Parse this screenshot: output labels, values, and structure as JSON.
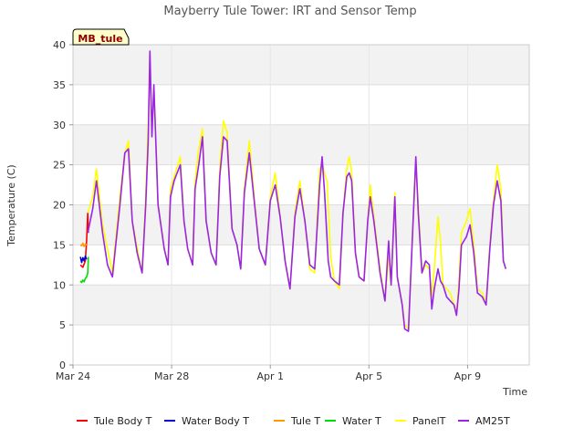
{
  "chart_data": {
    "type": "line",
    "title": "Mayberry Tule Tower: IRT and Sensor Temp",
    "xlabel": "Time",
    "ylabel": "Temperature (C)",
    "ylim": [
      0,
      40
    ],
    "xlim": [
      0,
      18.5
    ],
    "yticks": [
      0,
      5,
      10,
      15,
      20,
      25,
      30,
      35,
      40
    ],
    "xticks": [
      {
        "day": 0,
        "label": "Mar 24"
      },
      {
        "day": 4,
        "label": "Mar 28"
      },
      {
        "day": 8,
        "label": "Apr 1"
      },
      {
        "day": 12,
        "label": "Apr 5"
      },
      {
        "day": 16,
        "label": "Apr 9"
      }
    ],
    "badge": "MB_tule",
    "legend_position": "bottom",
    "series": [
      {
        "name": "Tule Body T",
        "color": "#ff0000",
        "points": [
          [
            0.3,
            12.5
          ],
          [
            0.4,
            12.2
          ],
          [
            0.5,
            13.0
          ],
          [
            0.55,
            15.5
          ],
          [
            0.6,
            19.0
          ],
          [
            0.62,
            16.5
          ]
        ]
      },
      {
        "name": "Water Body T",
        "color": "#0000cc",
        "points": [
          [
            0.3,
            13.5
          ],
          [
            0.35,
            12.8
          ],
          [
            0.4,
            13.4
          ],
          [
            0.45,
            13.0
          ],
          [
            0.5,
            13.6
          ],
          [
            0.55,
            13.2
          ]
        ]
      },
      {
        "name": "Tule T",
        "color": "#ff9900",
        "points": [
          [
            0.3,
            15.0
          ],
          [
            0.35,
            14.9
          ],
          [
            0.4,
            15.2
          ],
          [
            0.45,
            14.8
          ],
          [
            0.5,
            15.1
          ],
          [
            0.55,
            15.0
          ]
        ]
      },
      {
        "name": "Water T",
        "color": "#00dd00",
        "points": [
          [
            0.3,
            10.5
          ],
          [
            0.35,
            10.3
          ],
          [
            0.4,
            10.6
          ],
          [
            0.45,
            10.4
          ],
          [
            0.5,
            10.8
          ],
          [
            0.55,
            11.0
          ],
          [
            0.6,
            11.5
          ],
          [
            0.62,
            13.5
          ]
        ]
      },
      {
        "name": "PanelT",
        "color": "#ffff00",
        "points": [
          [
            0.6,
            19.0
          ],
          [
            0.8,
            21.0
          ],
          [
            0.95,
            24.5
          ],
          [
            1.2,
            17.5
          ],
          [
            1.6,
            11.5
          ],
          [
            1.9,
            21.0
          ],
          [
            2.1,
            26.5
          ],
          [
            2.25,
            28.0
          ],
          [
            2.4,
            18.0
          ],
          [
            2.7,
            13.0
          ],
          [
            2.8,
            11.5
          ],
          [
            2.95,
            21.0
          ],
          [
            3.05,
            30.0
          ],
          [
            3.12,
            38.5
          ],
          [
            3.2,
            29.0
          ],
          [
            3.28,
            34.5
          ],
          [
            3.45,
            20.0
          ],
          [
            3.7,
            14.5
          ],
          [
            3.85,
            12.5
          ],
          [
            3.95,
            22.0
          ],
          [
            4.1,
            23.5
          ],
          [
            4.35,
            26.0
          ],
          [
            4.5,
            18.0
          ],
          [
            4.65,
            14.5
          ],
          [
            4.85,
            12.5
          ],
          [
            4.95,
            23.0
          ],
          [
            5.1,
            27.0
          ],
          [
            5.25,
            29.5
          ],
          [
            5.4,
            18.0
          ],
          [
            5.6,
            14.0
          ],
          [
            5.8,
            12.5
          ],
          [
            5.95,
            24.5
          ],
          [
            6.1,
            30.5
          ],
          [
            6.25,
            29.0
          ],
          [
            6.45,
            17.0
          ],
          [
            6.65,
            15.0
          ],
          [
            6.8,
            12.0
          ],
          [
            6.95,
            22.0
          ],
          [
            7.15,
            28.0
          ],
          [
            7.35,
            21.0
          ],
          [
            7.55,
            14.5
          ],
          [
            7.8,
            12.5
          ],
          [
            8.0,
            21.0
          ],
          [
            8.2,
            24.0
          ],
          [
            8.4,
            18.5
          ],
          [
            8.6,
            13.0
          ],
          [
            8.8,
            9.5
          ],
          [
            9.0,
            19.0
          ],
          [
            9.2,
            23.0
          ],
          [
            9.4,
            18.0
          ],
          [
            9.6,
            12.0
          ],
          [
            9.8,
            11.5
          ],
          [
            10.0,
            24.5
          ],
          [
            10.1,
            25.0
          ],
          [
            10.3,
            23.0
          ],
          [
            10.45,
            13.5
          ],
          [
            10.6,
            10.5
          ],
          [
            10.8,
            9.5
          ],
          [
            10.95,
            19.0
          ],
          [
            11.1,
            24.5
          ],
          [
            11.2,
            26.0
          ],
          [
            11.3,
            24.0
          ],
          [
            11.45,
            14.0
          ],
          [
            11.6,
            11.0
          ],
          [
            11.8,
            10.5
          ],
          [
            11.95,
            18.0
          ],
          [
            12.05,
            22.5
          ],
          [
            12.2,
            18.5
          ],
          [
            12.45,
            12.0
          ],
          [
            12.65,
            8.0
          ],
          [
            12.8,
            13.5
          ],
          [
            12.9,
            10.0
          ],
          [
            13.05,
            21.5
          ],
          [
            13.15,
            11.0
          ],
          [
            13.35,
            7.5
          ],
          [
            13.45,
            5.0
          ],
          [
            13.6,
            4.5
          ],
          [
            13.75,
            15.0
          ],
          [
            13.9,
            25.0
          ],
          [
            14.0,
            20.0
          ],
          [
            14.15,
            11.5
          ],
          [
            14.3,
            12.5
          ],
          [
            14.45,
            12.0
          ],
          [
            14.55,
            8.5
          ],
          [
            14.65,
            12.0
          ],
          [
            14.8,
            18.5
          ],
          [
            14.9,
            15.5
          ],
          [
            15.0,
            10.0
          ],
          [
            15.15,
            9.5
          ],
          [
            15.3,
            9.0
          ],
          [
            15.45,
            7.5
          ],
          [
            15.55,
            6.5
          ],
          [
            15.65,
            10.5
          ],
          [
            15.75,
            16.5
          ],
          [
            15.95,
            18.0
          ],
          [
            16.1,
            19.5
          ],
          [
            16.25,
            15.0
          ],
          [
            16.4,
            9.5
          ],
          [
            16.6,
            9.0
          ],
          [
            16.75,
            7.5
          ],
          [
            16.9,
            15.0
          ],
          [
            17.05,
            20.5
          ],
          [
            17.2,
            25.0
          ],
          [
            17.35,
            22.0
          ],
          [
            17.45,
            13.0
          ],
          [
            17.55,
            12.0
          ]
        ]
      },
      {
        "name": "AM25T",
        "color": "#9a24e8",
        "points": [
          [
            0.6,
            16.5
          ],
          [
            0.8,
            19.5
          ],
          [
            0.95,
            23.0
          ],
          [
            1.2,
            16.5
          ],
          [
            1.4,
            12.5
          ],
          [
            1.6,
            11.0
          ],
          [
            1.9,
            20.0
          ],
          [
            2.1,
            26.5
          ],
          [
            2.25,
            27.0
          ],
          [
            2.4,
            18.0
          ],
          [
            2.6,
            14.0
          ],
          [
            2.8,
            11.5
          ],
          [
            2.95,
            20.0
          ],
          [
            3.05,
            28.0
          ],
          [
            3.12,
            39.2
          ],
          [
            3.2,
            28.5
          ],
          [
            3.28,
            35.0
          ],
          [
            3.45,
            20.0
          ],
          [
            3.7,
            14.5
          ],
          [
            3.85,
            12.5
          ],
          [
            3.95,
            21.0
          ],
          [
            4.1,
            23.0
          ],
          [
            4.35,
            25.0
          ],
          [
            4.5,
            18.0
          ],
          [
            4.65,
            14.5
          ],
          [
            4.85,
            12.5
          ],
          [
            4.95,
            22.0
          ],
          [
            5.1,
            25.0
          ],
          [
            5.25,
            28.5
          ],
          [
            5.4,
            18.0
          ],
          [
            5.6,
            14.0
          ],
          [
            5.8,
            12.5
          ],
          [
            5.95,
            23.5
          ],
          [
            6.1,
            28.5
          ],
          [
            6.25,
            28.0
          ],
          [
            6.45,
            17.0
          ],
          [
            6.65,
            15.0
          ],
          [
            6.8,
            12.0
          ],
          [
            6.95,
            21.5
          ],
          [
            7.15,
            26.5
          ],
          [
            7.35,
            20.5
          ],
          [
            7.55,
            14.5
          ],
          [
            7.8,
            12.5
          ],
          [
            8.0,
            20.5
          ],
          [
            8.2,
            22.5
          ],
          [
            8.4,
            18.5
          ],
          [
            8.6,
            13.0
          ],
          [
            8.8,
            9.5
          ],
          [
            9.0,
            18.5
          ],
          [
            9.2,
            22.0
          ],
          [
            9.4,
            18.0
          ],
          [
            9.6,
            12.5
          ],
          [
            9.8,
            12.0
          ],
          [
            10.0,
            22.5
          ],
          [
            10.1,
            26.0
          ],
          [
            10.2,
            21.5
          ],
          [
            10.35,
            13.0
          ],
          [
            10.45,
            11.0
          ],
          [
            10.6,
            10.5
          ],
          [
            10.8,
            10.0
          ],
          [
            10.95,
            19.0
          ],
          [
            11.1,
            23.5
          ],
          [
            11.2,
            24.0
          ],
          [
            11.3,
            23.0
          ],
          [
            11.45,
            14.0
          ],
          [
            11.6,
            11.0
          ],
          [
            11.8,
            10.5
          ],
          [
            11.95,
            18.0
          ],
          [
            12.05,
            21.0
          ],
          [
            12.2,
            18.0
          ],
          [
            12.45,
            11.5
          ],
          [
            12.65,
            8.0
          ],
          [
            12.8,
            15.5
          ],
          [
            12.9,
            10.0
          ],
          [
            13.05,
            21.0
          ],
          [
            13.15,
            11.0
          ],
          [
            13.35,
            7.5
          ],
          [
            13.45,
            4.5
          ],
          [
            13.6,
            4.2
          ],
          [
            13.75,
            15.0
          ],
          [
            13.9,
            26.0
          ],
          [
            14.0,
            19.0
          ],
          [
            14.15,
            11.5
          ],
          [
            14.3,
            13.0
          ],
          [
            14.45,
            12.5
          ],
          [
            14.55,
            7.0
          ],
          [
            14.65,
            9.5
          ],
          [
            14.8,
            12.0
          ],
          [
            14.9,
            10.5
          ],
          [
            15.0,
            10.0
          ],
          [
            15.15,
            8.5
          ],
          [
            15.3,
            8.0
          ],
          [
            15.45,
            7.5
          ],
          [
            15.55,
            6.2
          ],
          [
            15.65,
            9.5
          ],
          [
            15.75,
            15.0
          ],
          [
            15.95,
            16.0
          ],
          [
            16.1,
            17.5
          ],
          [
            16.25,
            14.0
          ],
          [
            16.4,
            9.0
          ],
          [
            16.6,
            8.5
          ],
          [
            16.75,
            7.5
          ],
          [
            16.9,
            14.5
          ],
          [
            17.05,
            20.0
          ],
          [
            17.2,
            23.0
          ],
          [
            17.35,
            20.5
          ],
          [
            17.45,
            13.0
          ],
          [
            17.55,
            12.0
          ]
        ]
      }
    ]
  }
}
